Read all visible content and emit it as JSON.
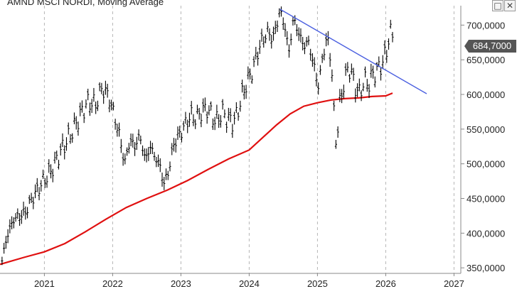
{
  "window": {
    "maximize_icon": "maximize-icon",
    "close_icon": "close-icon"
  },
  "chart_data": {
    "type": "ohlc",
    "title": "AMND MSCI NORDI, Moving Average",
    "xlabel": "",
    "ylabel": "",
    "x_ticks": [
      "2021",
      "2022",
      "2023",
      "2024",
      "2025",
      "2026",
      "2027"
    ],
    "y_ticks": [
      "350,0000",
      "400,0000",
      "450,0000",
      "500,0000",
      "550,0000",
      "600,0000",
      "650,0000",
      "700,0000"
    ],
    "xlim": [
      2020.35,
      2027.1
    ],
    "ylim": [
      342,
      728
    ],
    "grid": {
      "x": true,
      "y": false
    },
    "last_price_label": "684,7000",
    "last_price": 684.7,
    "colors": {
      "price": "#000000",
      "moving_average": "#e01010",
      "trendline": "#4a5fe0",
      "price_tag": "#555555"
    },
    "price_series": [
      [
        2020.38,
        360
      ],
      [
        2020.45,
        395
      ],
      [
        2020.55,
        420
      ],
      [
        2020.65,
        425
      ],
      [
        2020.72,
        430
      ],
      [
        2020.82,
        450
      ],
      [
        2020.95,
        470
      ],
      [
        2021.1,
        490
      ],
      [
        2021.25,
        520
      ],
      [
        2021.4,
        545
      ],
      [
        2021.55,
        575
      ],
      [
        2021.65,
        590
      ],
      [
        2021.75,
        585
      ],
      [
        2021.85,
        610
      ],
      [
        2021.95,
        595
      ],
      [
        2022.05,
        560
      ],
      [
        2022.12,
        530
      ],
      [
        2022.18,
        500
      ],
      [
        2022.25,
        535
      ],
      [
        2022.32,
        525
      ],
      [
        2022.4,
        540
      ],
      [
        2022.48,
        505
      ],
      [
        2022.55,
        525
      ],
      [
        2022.62,
        510
      ],
      [
        2022.7,
        495
      ],
      [
        2022.75,
        470
      ],
      [
        2022.82,
        490
      ],
      [
        2022.9,
        530
      ],
      [
        2023.0,
        545
      ],
      [
        2023.08,
        560
      ],
      [
        2023.15,
        570
      ],
      [
        2023.22,
        565
      ],
      [
        2023.3,
        575
      ],
      [
        2023.38,
        580
      ],
      [
        2023.45,
        570
      ],
      [
        2023.52,
        560
      ],
      [
        2023.6,
        575
      ],
      [
        2023.68,
        565
      ],
      [
        2023.75,
        560
      ],
      [
        2023.82,
        570
      ],
      [
        2023.9,
        600
      ],
      [
        2023.98,
        620
      ],
      [
        2024.05,
        635
      ],
      [
        2024.12,
        660
      ],
      [
        2024.2,
        680
      ],
      [
        2024.28,
        690
      ],
      [
        2024.35,
        680
      ],
      [
        2024.45,
        720
      ],
      [
        2024.52,
        700
      ],
      [
        2024.58,
        660
      ],
      [
        2024.65,
        710
      ],
      [
        2024.72,
        690
      ],
      [
        2024.8,
        670
      ],
      [
        2024.87,
        675
      ],
      [
        2024.95,
        640
      ],
      [
        2025.02,
        610
      ],
      [
        2025.08,
        660
      ],
      [
        2025.15,
        680
      ],
      [
        2025.2,
        650
      ],
      [
        2025.25,
        560
      ],
      [
        2025.28,
        525
      ],
      [
        2025.33,
        590
      ],
      [
        2025.4,
        620
      ],
      [
        2025.45,
        640
      ],
      [
        2025.5,
        630
      ],
      [
        2025.56,
        610
      ],
      [
        2025.62,
        600
      ],
      [
        2025.68,
        620
      ],
      [
        2025.75,
        615
      ],
      [
        2025.82,
        630
      ],
      [
        2025.88,
        635
      ],
      [
        2025.95,
        645
      ],
      [
        2026.02,
        665
      ],
      [
        2026.06,
        690
      ],
      [
        2026.1,
        685
      ]
    ],
    "moving_average": [
      [
        2020.35,
        355
      ],
      [
        2020.7,
        365
      ],
      [
        2021.0,
        373
      ],
      [
        2021.3,
        385
      ],
      [
        2021.6,
        402
      ],
      [
        2021.9,
        420
      ],
      [
        2022.2,
        437
      ],
      [
        2022.5,
        450
      ],
      [
        2022.8,
        462
      ],
      [
        2023.1,
        476
      ],
      [
        2023.4,
        492
      ],
      [
        2023.7,
        507
      ],
      [
        2024.0,
        520
      ],
      [
        2024.2,
        538
      ],
      [
        2024.4,
        556
      ],
      [
        2024.6,
        572
      ],
      [
        2024.8,
        583
      ],
      [
        2025.0,
        588
      ],
      [
        2025.2,
        592
      ],
      [
        2025.4,
        594
      ],
      [
        2025.6,
        595
      ],
      [
        2025.8,
        597
      ],
      [
        2026.0,
        598
      ],
      [
        2026.1,
        602
      ]
    ],
    "trendline": [
      [
        2024.45,
        723
      ],
      [
        2026.6,
        601
      ]
    ]
  }
}
